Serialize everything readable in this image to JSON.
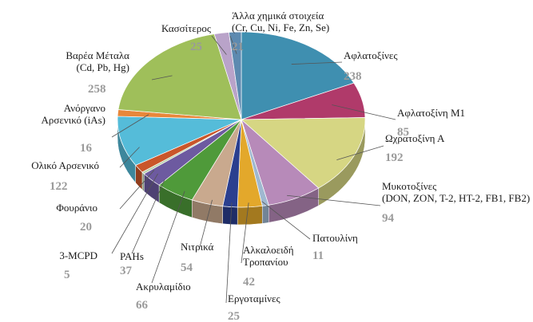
{
  "chart_data": {
    "type": "pie",
    "categories": [
      "Αφλατοξίνες",
      "Αφλατοξίνη M1",
      "Ωχρατοξίνη Α",
      "Μυκοτοξίνες\n(DON, ZON, T-2, HT-2, FB1, FB2)",
      "Πατουλίνη",
      "Αλκαλοειδή\nΤροπανίου",
      "Εργοταμίνες",
      "Νιτρικά",
      "Ακρυλαμίδιο",
      "PAHs",
      "3-MCPD",
      "Φουράνιο",
      "Ολικό Αρσενικό",
      "Ανόργανο\nΑρσενικό (iAs)",
      "Βαρέα Μέταλα\n(Cd, Pb, Hg)",
      "Κασσίτερος",
      "Άλλα χημικά στοιχεία\n(Cr, Cu, Ni, Fe, Zn, Se)"
    ],
    "values": [
      238,
      85,
      192,
      94,
      11,
      42,
      25,
      54,
      66,
      37,
      5,
      20,
      122,
      16,
      258,
      25,
      21
    ],
    "colors": [
      "#3f8fb0",
      "#b03a6a",
      "#d6d683",
      "#b78ab9",
      "#9fb8d0",
      "#e3a82b",
      "#2b3f8f",
      "#c9a98e",
      "#4f9a3a",
      "#6d5aa0",
      "#b8d0a8",
      "#c9562a",
      "#55bcd9",
      "#e8873a",
      "#9fbf5a",
      "#b9a3c9",
      "#5d8ab0"
    ]
  }
}
